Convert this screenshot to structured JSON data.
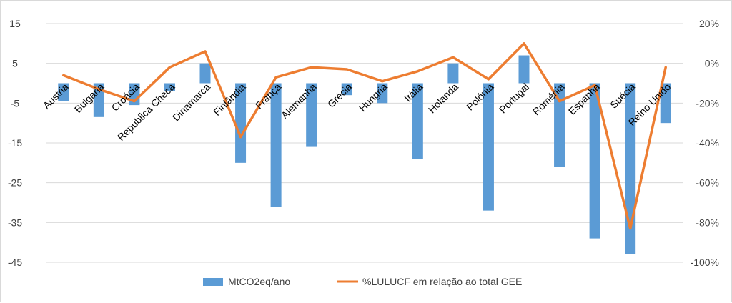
{
  "chart_data": {
    "type": "bar",
    "categories": [
      "Austria",
      "Bulgaria",
      "Croácia",
      "República Checa",
      "Dinamarca",
      "Finlândia",
      "França",
      "Alemanha",
      "Grécia",
      "Hungria",
      "Itália",
      "Holanda",
      "Polónia",
      "Portugal",
      "Roménia",
      "Espanha",
      "Suécia",
      "Reino Unido"
    ],
    "series": [
      {
        "name": "MtCO2eq/ano",
        "type": "bar",
        "axis": "left",
        "color": "#5b9bd5",
        "values": [
          -4.5,
          -8.5,
          -5.5,
          -2,
          5,
          -20,
          -31,
          -16,
          -3,
          -5,
          -19,
          5,
          -32,
          7,
          -21,
          -39,
          -43,
          -10
        ]
      },
      {
        "name": "%LULUCF em relação ao total GEE",
        "type": "line",
        "axis": "right",
        "color": "#ed7d31",
        "values": [
          -6,
          -13,
          -19,
          -2,
          6,
          -37,
          -7,
          -2,
          -3,
          -9,
          -4,
          3,
          -8,
          10,
          -19,
          -11,
          -83,
          -2
        ]
      }
    ],
    "y_left": {
      "ylim": [
        -45,
        15
      ],
      "ticks": [
        15,
        5,
        -5,
        -15,
        -25,
        -35,
        -45
      ]
    },
    "y_right": {
      "ylim": [
        -100,
        20
      ],
      "ticks": [
        "20%",
        "0%",
        "-20%",
        "-40%",
        "-60%",
        "-80%",
        "-100%"
      ]
    },
    "grid": true,
    "legend": "bottom"
  }
}
